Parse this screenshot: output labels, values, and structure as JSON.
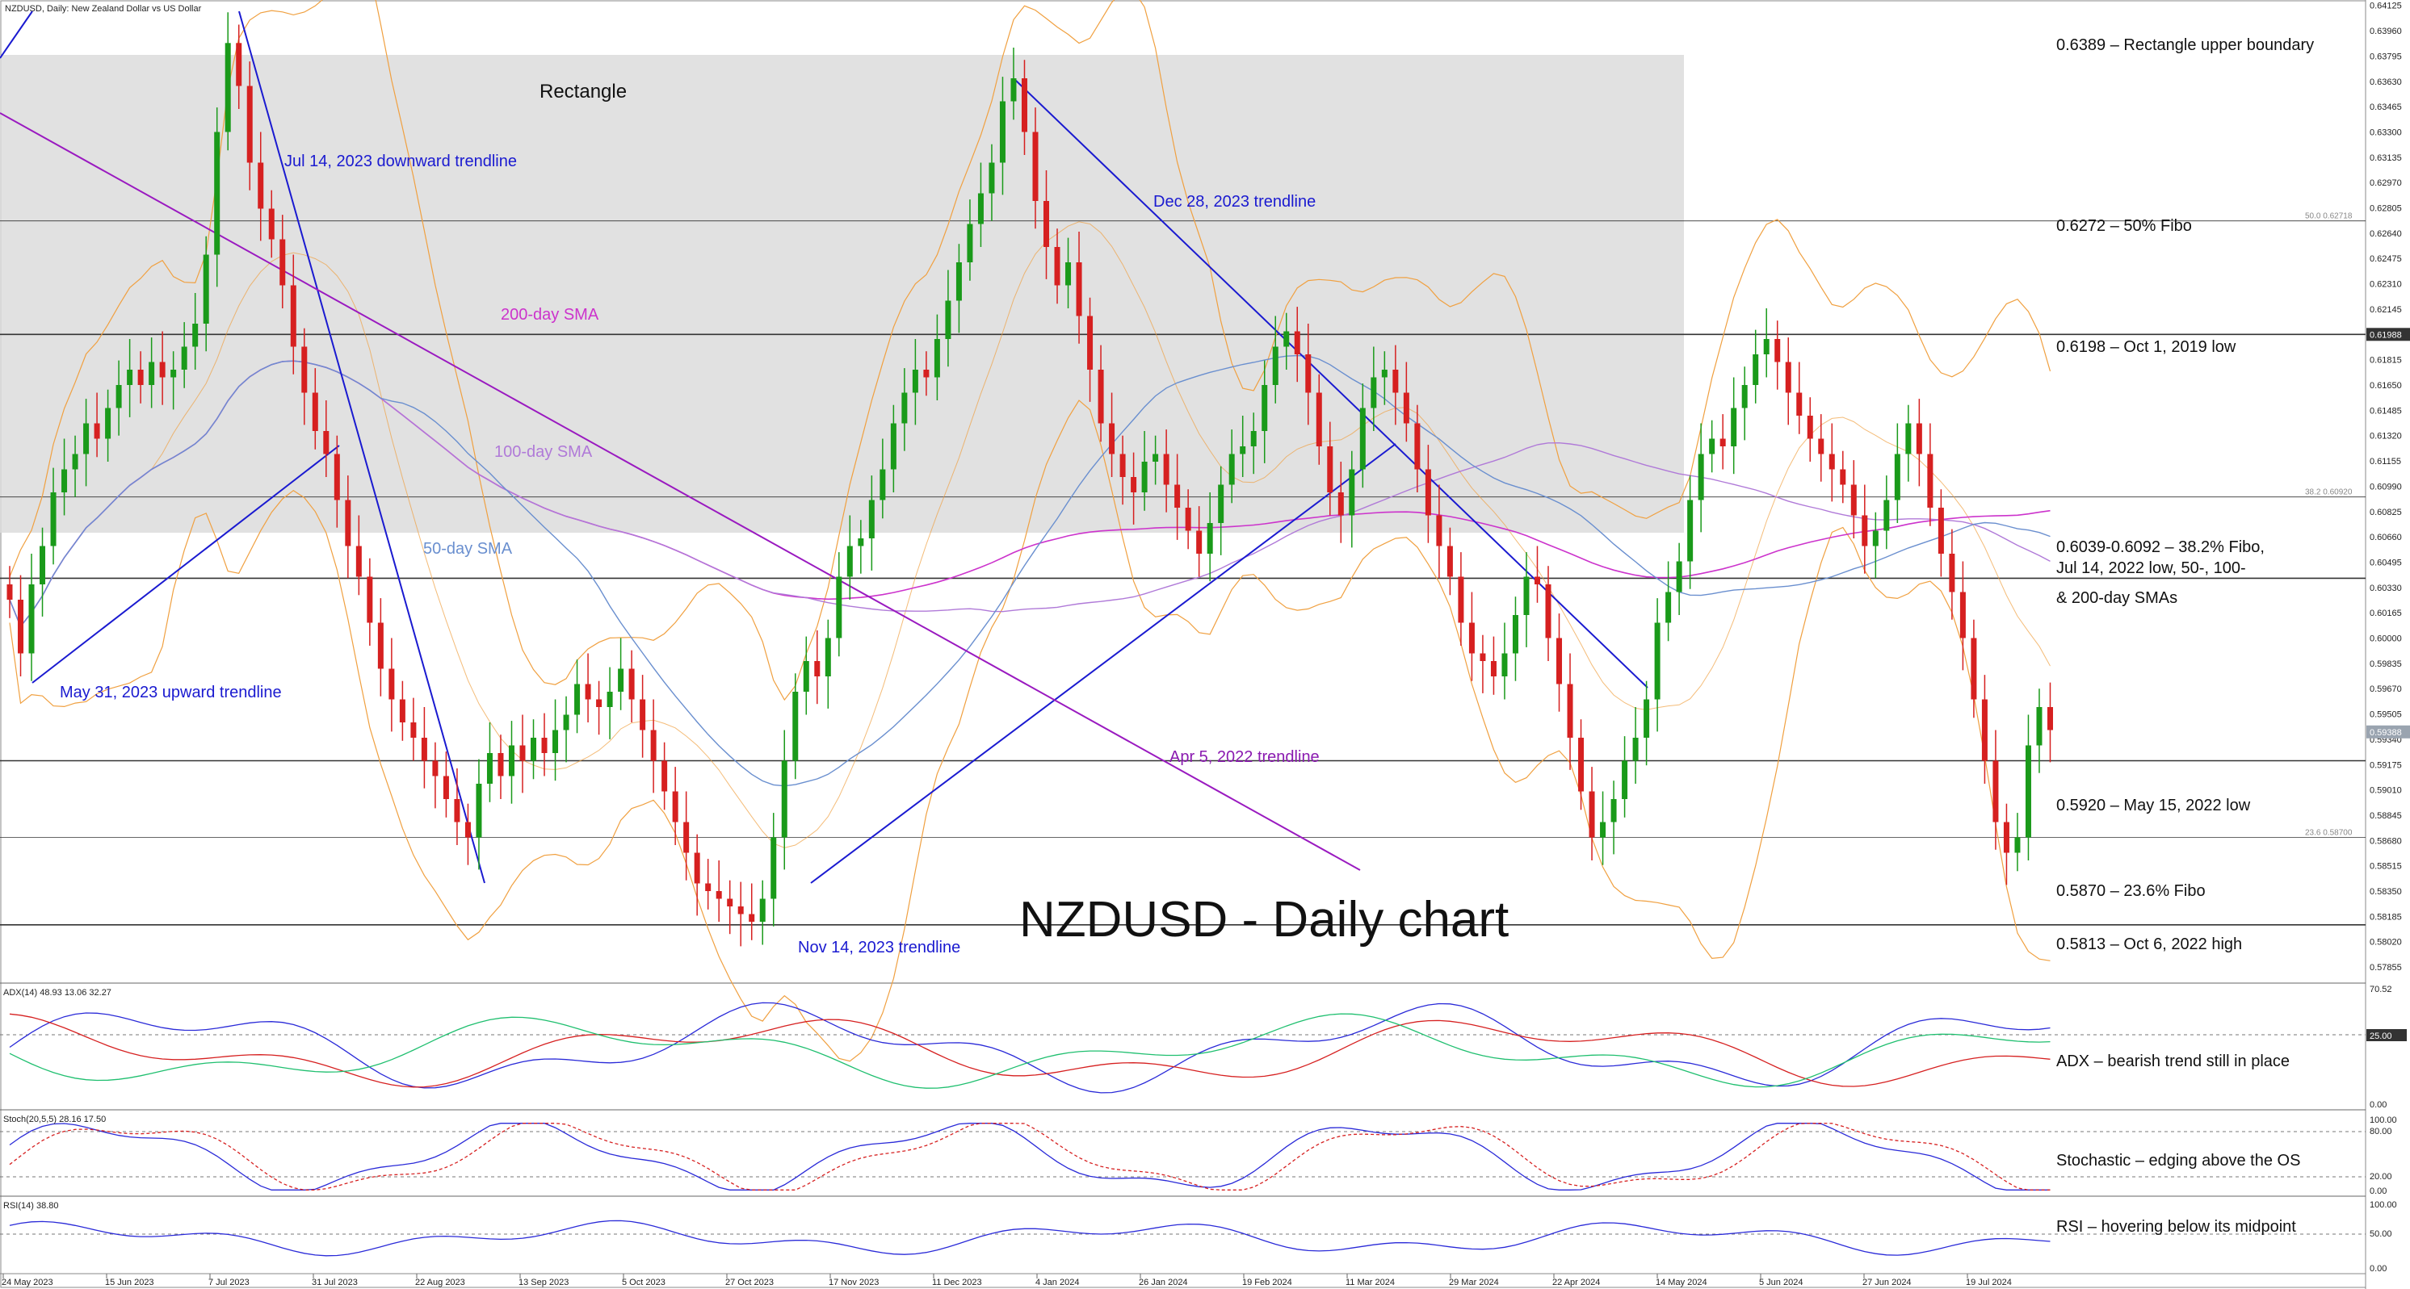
{
  "chart_data": {
    "type": "candlestick",
    "title": "NZDUSD - Daily chart",
    "header": "NZDUSD, Daily:  New Zealand Dollar vs US Dollar",
    "last_price": "0.59388",
    "y_axis": {
      "range": [
        0.5775,
        0.6415
      ],
      "ticks": [
        "0.64125",
        "0.63960",
        "0.63795",
        "0.63630",
        "0.63465",
        "0.63300",
        "0.63135",
        "0.62970",
        "0.62805",
        "0.62640",
        "0.62475",
        "0.62310",
        "0.62145",
        "0.61980",
        "0.61815",
        "0.61650",
        "0.61485",
        "0.61320",
        "0.61155",
        "0.60990",
        "0.60825",
        "0.60660",
        "0.60495",
        "0.60330",
        "0.60165",
        "0.60000",
        "0.59835",
        "0.59670",
        "0.59505",
        "0.59340",
        "0.59175",
        "0.59010",
        "0.58845",
        "0.58680",
        "0.58515",
        "0.58350",
        "0.58185",
        "0.58020",
        "0.57855"
      ]
    },
    "x_axis": {
      "ticks": [
        "24 May 2023",
        "15 Jun 2023",
        "7 Jul 2023",
        "31 Jul 2023",
        "22 Aug 2023",
        "13 Sep 2023",
        "5 Oct 2023",
        "27 Oct 2023",
        "17 Nov 2023",
        "11 Dec 2023",
        "4 Jan 2024",
        "26 Jan 2024",
        "19 Feb 2024",
        "11 Mar 2024",
        "29 Mar 2024",
        "22 Apr 2024",
        "14 May 2024",
        "5 Jun 2024",
        "27 Jun 2024",
        "19 Jul 2024"
      ]
    },
    "closes": [
      0.6025,
      0.599,
      0.6035,
      0.606,
      0.6095,
      0.611,
      0.612,
      0.614,
      0.613,
      0.615,
      0.6165,
      0.6175,
      0.6165,
      0.618,
      0.617,
      0.6175,
      0.619,
      0.6205,
      0.625,
      0.633,
      0.6388,
      0.636,
      0.631,
      0.628,
      0.626,
      0.623,
      0.619,
      0.616,
      0.6135,
      0.612,
      0.609,
      0.606,
      0.604,
      0.601,
      0.598,
      0.596,
      0.5945,
      0.5935,
      0.592,
      0.591,
      0.5895,
      0.588,
      0.587,
      0.5905,
      0.5925,
      0.591,
      0.593,
      0.592,
      0.5935,
      0.5925,
      0.594,
      0.595,
      0.597,
      0.596,
      0.5955,
      0.5965,
      0.598,
      0.596,
      0.594,
      0.592,
      0.59,
      0.588,
      0.586,
      0.584,
      0.5835,
      0.583,
      0.5825,
      0.582,
      0.5815,
      0.583,
      0.587,
      0.592,
      0.5965,
      0.5985,
      0.5975,
      0.6,
      0.604,
      0.606,
      0.6065,
      0.609,
      0.611,
      0.614,
      0.616,
      0.6175,
      0.617,
      0.6195,
      0.622,
      0.6245,
      0.627,
      0.629,
      0.631,
      0.635,
      0.6365,
      0.633,
      0.6285,
      0.6255,
      0.623,
      0.6245,
      0.621,
      0.6175,
      0.614,
      0.612,
      0.6105,
      0.6095,
      0.6115,
      0.612,
      0.61,
      0.6085,
      0.607,
      0.6055,
      0.6075,
      0.61,
      0.612,
      0.6125,
      0.6135,
      0.6165,
      0.619,
      0.62,
      0.6185,
      0.616,
      0.6125,
      0.6095,
      0.608,
      0.611,
      0.615,
      0.617,
      0.6175,
      0.616,
      0.614,
      0.611,
      0.608,
      0.606,
      0.604,
      0.601,
      0.599,
      0.5985,
      0.5975,
      0.599,
      0.6015,
      0.604,
      0.6035,
      0.6,
      0.597,
      0.5935,
      0.59,
      0.587,
      0.588,
      0.5895,
      0.592,
      0.5935,
      0.596,
      0.601,
      0.603,
      0.605,
      0.609,
      0.612,
      0.613,
      0.6125,
      0.615,
      0.6165,
      0.6185,
      0.6195,
      0.618,
      0.616,
      0.6145,
      0.613,
      0.612,
      0.611,
      0.61,
      0.608,
      0.606,
      0.607,
      0.609,
      0.612,
      0.614,
      0.612,
      0.6085,
      0.6055,
      0.603,
      0.6,
      0.596,
      0.592,
      0.588,
      0.586,
      0.587,
      0.593,
      0.5955,
      0.594
    ]
  },
  "price_annotations": [
    {
      "level": 0.6389,
      "text": "0.6389 – Rectangle upper boundary"
    },
    {
      "level": 0.6272,
      "text": "0.6272 – 50% Fibo",
      "tag": "50.0 0.62718"
    },
    {
      "level": 0.6198,
      "text": "0.6198 – Oct 1, 2019 low",
      "price_tag": "0.61988"
    },
    {
      "level": 0.6092,
      "text": "0.6039-0.6092 – 38.2% Fibo,",
      "tag": "38.2 0.60920"
    },
    {
      "text": "Jul 14, 2022 low, 50-, 100-"
    },
    {
      "level": 0.6039,
      "text": "& 200-day SMAs"
    },
    {
      "level": 0.592,
      "text": "0.5920 – May 15, 2022 low"
    },
    {
      "level": 0.587,
      "text": "0.5870 – 23.6% Fibo",
      "tag": "23.6 0.58700"
    },
    {
      "level": 0.5813,
      "text": "0.5813 – Oct 6, 2022 high"
    }
  ],
  "chart_labels": {
    "rectangle": "Rectangle",
    "jul14_trendline": "Jul 14, 2023 downward trendline",
    "dec28_trendline": "Dec 28, 2023 trendline",
    "sma200": "200-day SMA",
    "sma100": "100-day SMA",
    "sma50": "50-day SMA",
    "may31_trendline": "May 31, 2023 upward trendline",
    "apr5_trendline": "Apr 5, 2022 trendline",
    "nov14_trendline": "Nov 14, 2023 trendline"
  },
  "indicators": {
    "adx": {
      "header": "ADX(14) 48.93 13.06 32.27",
      "ticks": [
        "70.52",
        "25.00",
        "0.00"
      ],
      "note": "ADX – bearish trend still in place"
    },
    "stoch": {
      "header": "Stoch(20,5,5) 28.16 17.50",
      "ticks": [
        "100.00",
        "80.00",
        "20.00",
        "0.00"
      ],
      "note": "Stochastic – edging above the OS"
    },
    "rsi": {
      "header": "RSI(14) 38.80",
      "ticks": [
        "100.00",
        "50.00",
        "0.00"
      ],
      "note": "RSI – hovering below its midpoint"
    }
  },
  "colors": {
    "bull": "#1a9a1a",
    "bear": "#d62020",
    "trendline": "#1a1ad0",
    "sma200": "#cc33cc",
    "sma100": "#b07ad8",
    "sma50": "#6a8fcf",
    "bollinger": "#f0a040",
    "rectangle_fill": "#dcdcdc"
  }
}
